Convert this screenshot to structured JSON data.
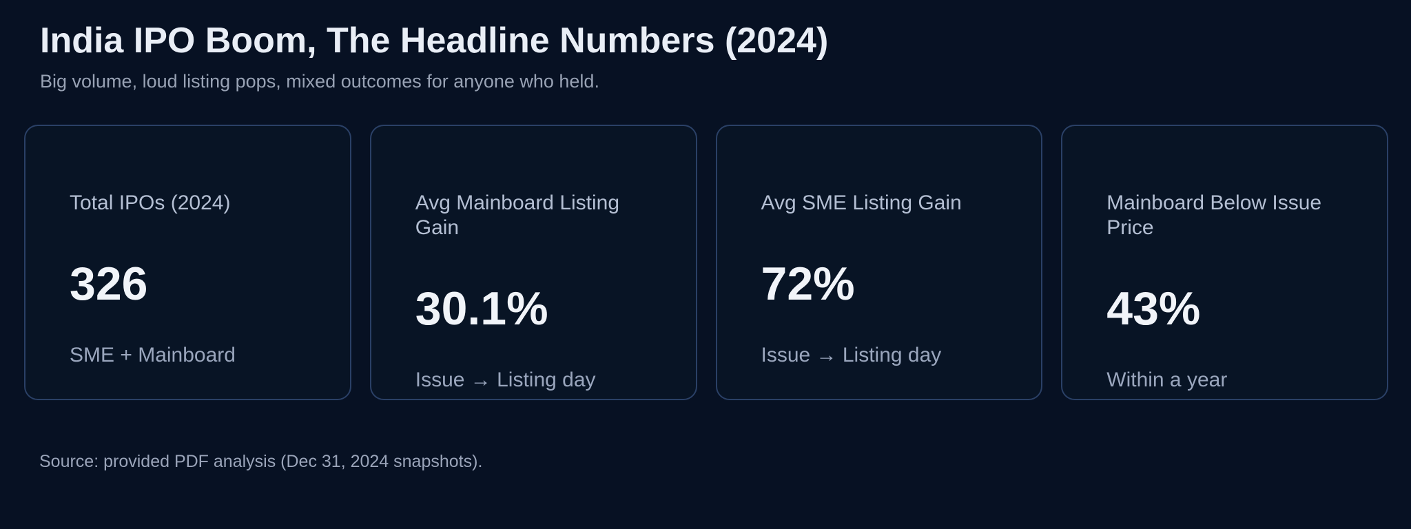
{
  "header": {
    "title": "India IPO Boom, The Headline Numbers (2024)",
    "subtitle": "Big volume, loud listing pops, mixed outcomes for anyone who held."
  },
  "cards": [
    {
      "label": "Total IPOs (2024)",
      "value": "326",
      "caption": "SME + Mainboard"
    },
    {
      "label": "Avg Mainboard Listing Gain",
      "value": "30.1%",
      "caption": "Issue → Listing day"
    },
    {
      "label": "Avg SME Listing Gain",
      "value": "72%",
      "caption": "Issue → Listing day"
    },
    {
      "label": "Mainboard Below Issue Price",
      "value": "43%",
      "caption": "Within a year"
    }
  ],
  "footer": {
    "source": "Source: provided PDF analysis (Dec 31, 2024 snapshots)."
  },
  "colors": {
    "page_background": "#071123",
    "card_background": "#081425",
    "card_border": "#2a4066",
    "title": "#e9eef6",
    "subtitle": "#98a2b4",
    "card_label": "#b4bfd3",
    "card_value": "#f1f4f9",
    "card_caption": "#9aa6bd",
    "source": "#9aa4b9"
  },
  "chart_data": {
    "type": "table",
    "title": "India IPO Boom, The Headline Numbers (2024)",
    "subtitle": "Big volume, loud listing pops, mixed outcomes for anyone who held.",
    "metrics": [
      {
        "label": "Total IPOs (2024)",
        "value": 326,
        "unit": "count",
        "note": "SME + Mainboard"
      },
      {
        "label": "Avg Mainboard Listing Gain",
        "value": 30.1,
        "unit": "%",
        "note": "Issue → Listing day"
      },
      {
        "label": "Avg SME Listing Gain",
        "value": 72,
        "unit": "%",
        "note": "Issue → Listing day"
      },
      {
        "label": "Mainboard Below Issue Price",
        "value": 43,
        "unit": "%",
        "note": "Within a year"
      }
    ],
    "source": "Source: provided PDF analysis (Dec 31, 2024 snapshots)."
  }
}
